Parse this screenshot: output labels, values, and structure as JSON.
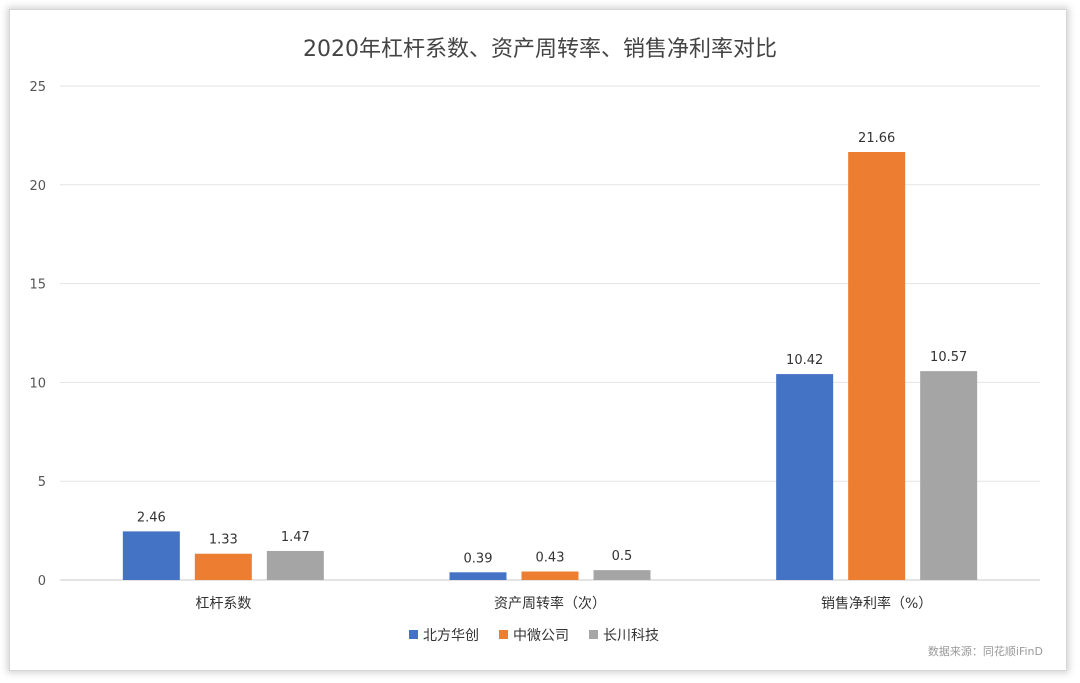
{
  "chart_data": {
    "type": "bar",
    "title": "2020年杠杆系数、资产周转率、销售净利率对比",
    "categories": [
      "杠杆系数",
      "资产周转率（次）",
      "销售净利率（%）"
    ],
    "series": [
      {
        "name": "北方华创",
        "color": "#4472C4",
        "values": [
          2.46,
          0.39,
          10.42
        ]
      },
      {
        "name": "中微公司",
        "color": "#ED7D31",
        "values": [
          1.33,
          0.43,
          21.66
        ]
      },
      {
        "name": "长川科技",
        "color": "#A5A5A5",
        "values": [
          1.47,
          0.5,
          10.57
        ]
      }
    ],
    "ylim": [
      0,
      25
    ],
    "yticks": [
      0,
      5,
      10,
      15,
      20,
      25
    ],
    "grid": true,
    "legend": "bottom",
    "source_note": "数据来源：同花顺iFinD"
  }
}
